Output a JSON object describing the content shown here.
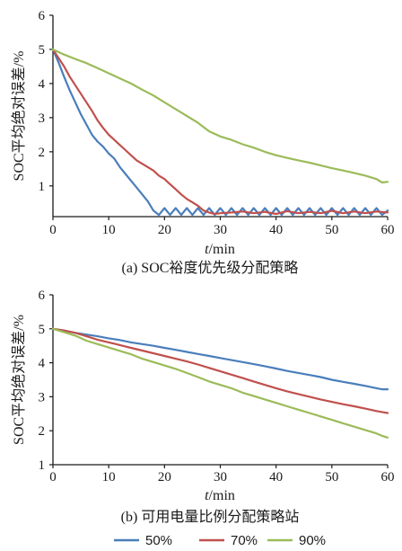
{
  "chart_data": [
    {
      "type": "line",
      "title": "(a)  SOC裕度优先级分配策略",
      "xlabel_italic": "t",
      "xlabel_unit": "/min",
      "ylabel": "SOC平均绝对误差/%",
      "xlim": [
        0,
        60
      ],
      "ylim": [
        0.1,
        6
      ],
      "xticks": [
        0,
        10,
        20,
        30,
        40,
        50,
        60
      ],
      "yticks": [
        1,
        2,
        3,
        4,
        5,
        6
      ],
      "grid": false,
      "series": [
        {
          "name": "50%",
          "color": "#4a7ebb",
          "x": [
            0,
            1,
            2,
            3,
            4,
            5,
            6,
            7,
            8,
            9,
            10,
            11,
            12,
            13,
            14,
            15,
            16,
            17,
            18,
            19,
            20,
            21,
            22,
            23,
            24,
            25,
            26,
            27,
            28,
            29,
            30,
            31,
            32,
            33,
            34,
            35,
            36,
            37,
            38,
            39,
            40,
            41,
            42,
            43,
            44,
            45,
            46,
            47,
            48,
            49,
            50,
            51,
            52,
            53,
            54,
            55,
            56,
            57,
            58,
            59,
            60
          ],
          "values": [
            5.0,
            4.62,
            4.2,
            3.8,
            3.45,
            3.1,
            2.8,
            2.5,
            2.3,
            2.15,
            1.95,
            1.8,
            1.55,
            1.35,
            1.15,
            0.95,
            0.75,
            0.55,
            0.28,
            0.15,
            0.35,
            0.15,
            0.35,
            0.15,
            0.35,
            0.15,
            0.35,
            0.15,
            0.35,
            0.15,
            0.35,
            0.15,
            0.35,
            0.15,
            0.35,
            0.15,
            0.35,
            0.15,
            0.35,
            0.15,
            0.35,
            0.15,
            0.35,
            0.15,
            0.35,
            0.15,
            0.35,
            0.15,
            0.35,
            0.15,
            0.35,
            0.15,
            0.35,
            0.15,
            0.35,
            0.15,
            0.35,
            0.15,
            0.35,
            0.15,
            0.28
          ]
        },
        {
          "name": "70%",
          "color": "#c0504d",
          "x": [
            0,
            1,
            2,
            3,
            4,
            5,
            6,
            7,
            8,
            9,
            10,
            11,
            12,
            13,
            14,
            15,
            16,
            17,
            18,
            19,
            20,
            21,
            22,
            23,
            24,
            25,
            26,
            27,
            28,
            29,
            30,
            32,
            34,
            36,
            38,
            40,
            42,
            44,
            46,
            48,
            50,
            52,
            54,
            56,
            58,
            60
          ],
          "values": [
            5.0,
            4.75,
            4.5,
            4.2,
            3.95,
            3.7,
            3.45,
            3.2,
            2.92,
            2.7,
            2.5,
            2.35,
            2.2,
            2.05,
            1.9,
            1.75,
            1.65,
            1.55,
            1.45,
            1.3,
            1.2,
            1.05,
            0.9,
            0.75,
            0.62,
            0.52,
            0.42,
            0.28,
            0.22,
            0.18,
            0.2,
            0.22,
            0.25,
            0.2,
            0.24,
            0.18,
            0.26,
            0.2,
            0.24,
            0.2,
            0.27,
            0.2,
            0.25,
            0.2,
            0.25,
            0.22
          ]
        },
        {
          "name": "90%",
          "color": "#9bbb59",
          "x": [
            0,
            2,
            4,
            6,
            8,
            10,
            12,
            14,
            16,
            18,
            20,
            22,
            24,
            26,
            28,
            30,
            32,
            34,
            36,
            38,
            40,
            42,
            44,
            46,
            48,
            50,
            52,
            54,
            56,
            58,
            59,
            60
          ],
          "values": [
            5.0,
            4.85,
            4.72,
            4.6,
            4.45,
            4.3,
            4.15,
            4.0,
            3.82,
            3.65,
            3.45,
            3.25,
            3.05,
            2.85,
            2.6,
            2.45,
            2.35,
            2.22,
            2.12,
            2.0,
            1.9,
            1.82,
            1.75,
            1.68,
            1.6,
            1.52,
            1.45,
            1.38,
            1.3,
            1.2,
            1.1,
            1.12
          ]
        }
      ]
    },
    {
      "type": "line",
      "title": "(b)  可用电量比例分配策略站",
      "xlabel_italic": "t",
      "xlabel_unit": "/min",
      "ylabel": "SOC平均绝对误差/%",
      "xlim": [
        0,
        60
      ],
      "ylim": [
        1,
        6
      ],
      "xticks": [
        0,
        10,
        20,
        30,
        40,
        50,
        60
      ],
      "yticks": [
        1,
        2,
        3,
        4,
        5,
        6
      ],
      "grid": false,
      "series": [
        {
          "name": "50%",
          "color": "#4a7ebb",
          "x": [
            0,
            2,
            4,
            6,
            8,
            10,
            12,
            14,
            16,
            18,
            20,
            22,
            24,
            26,
            28,
            30,
            32,
            34,
            36,
            38,
            40,
            42,
            44,
            46,
            48,
            50,
            52,
            54,
            56,
            58,
            59,
            60
          ],
          "values": [
            5.0,
            4.95,
            4.88,
            4.83,
            4.78,
            4.72,
            4.67,
            4.6,
            4.55,
            4.5,
            4.44,
            4.38,
            4.32,
            4.26,
            4.2,
            4.14,
            4.08,
            4.02,
            3.96,
            3.9,
            3.83,
            3.76,
            3.7,
            3.64,
            3.58,
            3.5,
            3.44,
            3.38,
            3.32,
            3.25,
            3.22,
            3.22
          ]
        },
        {
          "name": "70%",
          "color": "#c0504d",
          "x": [
            0,
            2,
            4,
            6,
            8,
            10,
            12,
            14,
            16,
            18,
            20,
            22,
            24,
            26,
            28,
            30,
            32,
            34,
            36,
            38,
            40,
            42,
            44,
            46,
            48,
            50,
            52,
            54,
            56,
            58,
            59,
            60
          ],
          "values": [
            5.0,
            4.95,
            4.88,
            4.78,
            4.68,
            4.6,
            4.52,
            4.44,
            4.36,
            4.28,
            4.2,
            4.12,
            4.04,
            3.95,
            3.85,
            3.75,
            3.65,
            3.55,
            3.45,
            3.35,
            3.25,
            3.16,
            3.08,
            3.0,
            2.92,
            2.85,
            2.78,
            2.72,
            2.65,
            2.58,
            2.55,
            2.52
          ]
        },
        {
          "name": "90%",
          "color": "#9bbb59",
          "x": [
            0,
            2,
            4,
            6,
            8,
            10,
            12,
            14,
            16,
            18,
            20,
            22,
            24,
            26,
            28,
            30,
            32,
            34,
            36,
            38,
            40,
            42,
            44,
            46,
            48,
            50,
            52,
            54,
            56,
            58,
            59,
            60
          ],
          "values": [
            5.0,
            4.9,
            4.8,
            4.65,
            4.55,
            4.45,
            4.35,
            4.25,
            4.12,
            4.02,
            3.92,
            3.82,
            3.7,
            3.58,
            3.45,
            3.35,
            3.25,
            3.12,
            3.02,
            2.92,
            2.82,
            2.72,
            2.62,
            2.52,
            2.42,
            2.32,
            2.22,
            2.12,
            2.02,
            1.92,
            1.85,
            1.8
          ]
        }
      ]
    }
  ],
  "legend": {
    "placement": "bottom",
    "items": [
      {
        "label": "50%",
        "color": "#4a7ebb"
      },
      {
        "label": "70%",
        "color": "#c0504d"
      },
      {
        "label": "90%",
        "color": "#9bbb59"
      }
    ]
  }
}
